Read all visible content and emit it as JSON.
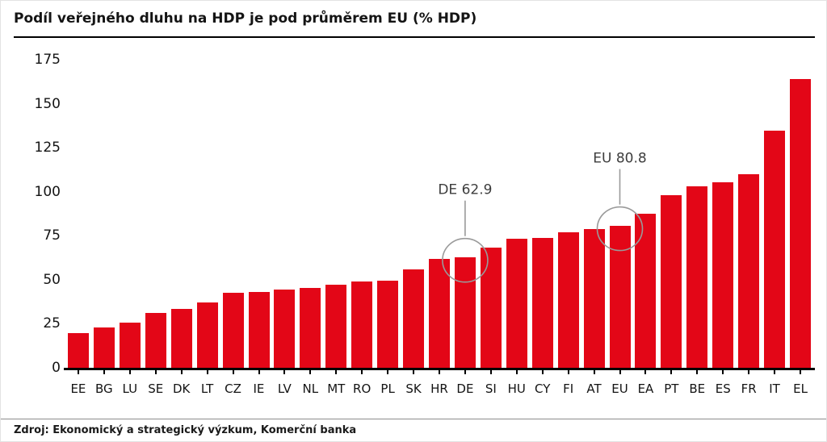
{
  "title": "Podíl veřejného dluhu na HDP je pod průměrem EU (% HDP)",
  "source": "Zdroj: Ekonomický a strategický výzkum, Komerční banka",
  "chart_data": {
    "type": "bar",
    "categories": [
      "EE",
      "BG",
      "LU",
      "SE",
      "DK",
      "LT",
      "CZ",
      "IE",
      "LV",
      "NL",
      "MT",
      "RO",
      "PL",
      "SK",
      "HR",
      "DE",
      "SI",
      "HU",
      "CY",
      "FI",
      "AT",
      "EU",
      "EA",
      "PT",
      "BE",
      "ES",
      "FR",
      "IT",
      "EL"
    ],
    "values": [
      19.6,
      23.1,
      25.7,
      31.2,
      33.6,
      37.3,
      42.4,
      43.3,
      44.5,
      45.5,
      47.3,
      48.9,
      49.7,
      56.1,
      61.8,
      62.9,
      68.4,
      73.4,
      73.6,
      77.1,
      78.6,
      80.8,
      87.4,
      97.9,
      103.1,
      105.2,
      109.9,
      134.8,
      163.9
    ],
    "title": "Podíl veřejného dluhu na HDP je pod průměrem EU (% HDP)",
    "xlabel": "",
    "ylabel": "",
    "ylim": [
      0,
      175
    ],
    "yticks": [
      0,
      25,
      50,
      75,
      100,
      125,
      150,
      175
    ],
    "grid": false,
    "legend": "none",
    "bar_color": "#e30617",
    "annotation_line_color": "#9a9a9a",
    "annotation_text_color": "#3d3d3d",
    "annotations": [
      {
        "label": "DE 62.9",
        "category": "DE"
      },
      {
        "label": "EU 80.8",
        "category": "EU"
      }
    ]
  }
}
